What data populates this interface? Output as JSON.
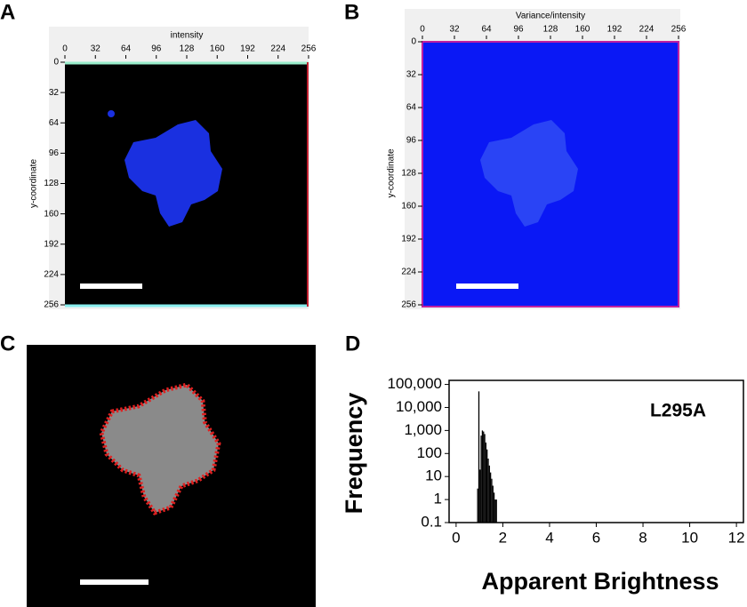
{
  "chart_data": [
    {
      "type": "image",
      "panel_label": "A",
      "xlabel": "intensity",
      "ylabel": "y-coordinate",
      "xlim": [
        0,
        256
      ],
      "ylim": [
        0,
        256
      ],
      "xticks": [
        0,
        32,
        64,
        96,
        128,
        160,
        192,
        224,
        256
      ],
      "yticks": [
        0,
        32,
        64,
        96,
        128,
        160,
        192,
        224,
        256
      ],
      "color": "#000000"
    },
    {
      "type": "image",
      "panel_label": "B",
      "xlabel": "Variance/intensity",
      "ylabel": "y-coordinate",
      "xlim": [
        0,
        256
      ],
      "ylim": [
        0,
        256
      ],
      "xticks": [
        0,
        32,
        64,
        96,
        128,
        160,
        192,
        224,
        256
      ],
      "yticks": [
        0,
        32,
        64,
        96,
        128,
        160,
        192,
        224,
        256
      ],
      "color": "#0a18f5"
    },
    {
      "type": "image",
      "panel_label": "C",
      "color": "#000000"
    },
    {
      "type": "histogram",
      "panel_label": "D",
      "xlabel": "Apparent Brightness",
      "ylabel": "Frequency",
      "annotation": "L295A",
      "bins": [
        0.9,
        0.95,
        1.0,
        1.05,
        1.1,
        1.15,
        1.2,
        1.25,
        1.3,
        1.35,
        1.4,
        1.45,
        1.5,
        1.55,
        1.6,
        1.65,
        1.7,
        1.75
      ],
      "values": [
        3,
        50000,
        20,
        600,
        1000,
        900,
        700,
        300,
        150,
        60,
        30,
        15,
        8,
        4,
        2,
        1,
        1
      ],
      "color": "#000000",
      "xlim": [
        -0.3,
        12.3
      ],
      "xticks": [
        0,
        2,
        4,
        6,
        8,
        10,
        12
      ],
      "ylim": [
        0.1,
        150000
      ],
      "log_y": true,
      "yticks": [
        0.1,
        1,
        10,
        100,
        {
          "value": 1000,
          "label": "1,000"
        },
        {
          "value": 10000,
          "label": "10,000"
        },
        {
          "value": 100000,
          "label": "100,000"
        }
      ]
    }
  ]
}
